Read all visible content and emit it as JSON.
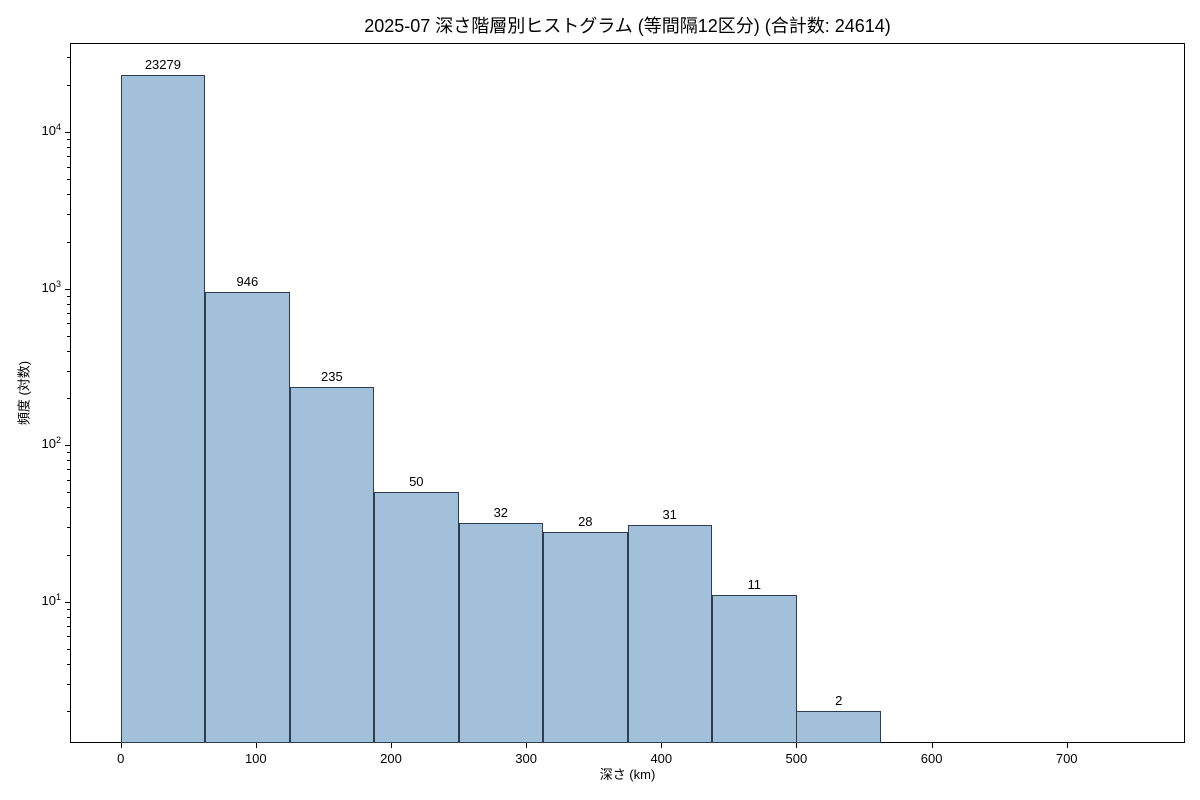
{
  "chart_data": {
    "type": "bar",
    "subtype": "histogram",
    "title": "2025-07 深さ階層別ヒストグラム (等間隔12区分) (合計数: 24614)",
    "xlabel": "深さ (km)",
    "ylabel": "頻度 (対数)",
    "total_count": 24614,
    "num_bins": 12,
    "bin_width": 62.5,
    "bin_start": 0,
    "counts": [
      23279,
      946,
      235,
      50,
      32,
      28,
      31,
      11,
      2,
      0,
      0,
      0
    ],
    "bar_value_labels": [
      "23279",
      "946",
      "235",
      "50",
      "32",
      "28",
      "31",
      "11",
      "2"
    ],
    "x_ticks": [
      0,
      100,
      200,
      300,
      400,
      500,
      600,
      700
    ],
    "y_major_tick_exponents": [
      1,
      2,
      3,
      4
    ],
    "y_scale": "log",
    "xlim": [
      -37.5,
      787.5
    ],
    "ylim": [
      1.25,
      37100
    ],
    "grid": false,
    "legend": null,
    "colors": {
      "bar_fill": "#a3c0da",
      "bar_edge": "#2f3e4e",
      "axis": "#000000",
      "text": "#000000",
      "background": "#ffffff"
    }
  }
}
